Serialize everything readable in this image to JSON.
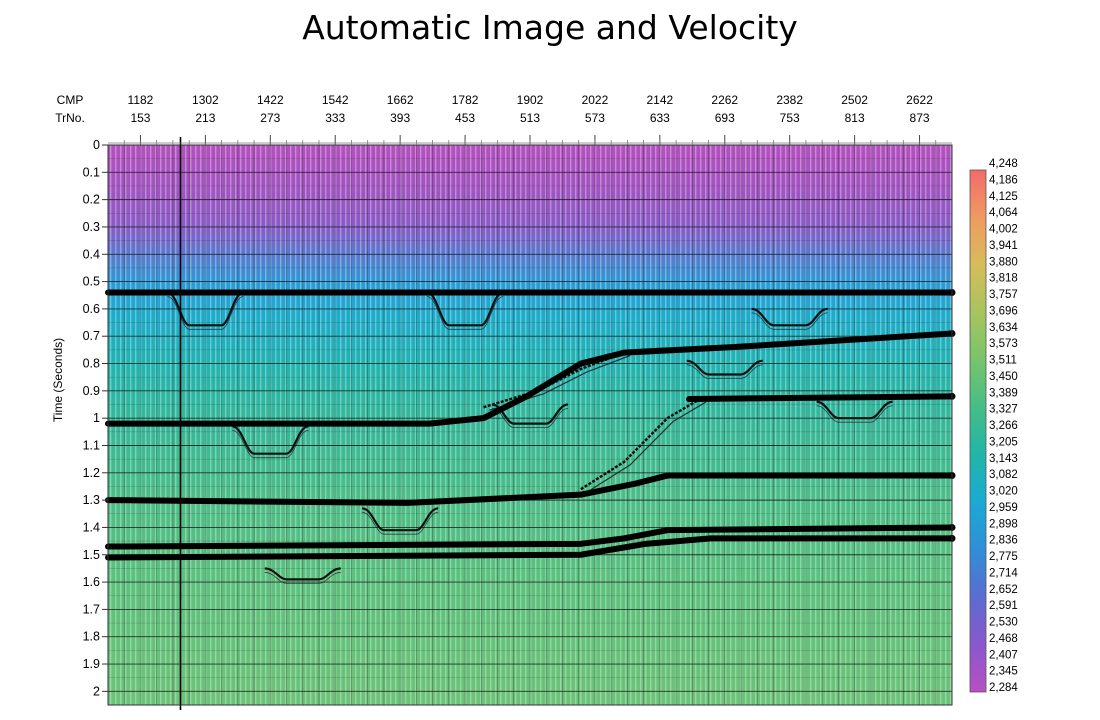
{
  "title": "Automatic Image and Velocity",
  "chart_data": {
    "type": "heatmap",
    "title": "Automatic Image and Velocity",
    "ylabel": "Time (Seconds)",
    "x_axis_rows": [
      {
        "label": "CMP",
        "values": [
          "1182",
          "1302",
          "1422",
          "1542",
          "1662",
          "1782",
          "1902",
          "2022",
          "2142",
          "2262",
          "2382",
          "2502",
          "2622"
        ]
      },
      {
        "label": "TrNo.",
        "values": [
          "153",
          "213",
          "273",
          "333",
          "393",
          "453",
          "513",
          "573",
          "633",
          "693",
          "753",
          "813",
          "873"
        ]
      }
    ],
    "y_ticks": [
      "0",
      "0.1",
      "0.2",
      "0.3",
      "0.4",
      "0.5",
      "0.6",
      "0.7",
      "0.8",
      "0.9",
      "1",
      "1.1",
      "1.2",
      "1.3",
      "1.4",
      "1.5",
      "1.6",
      "1.7",
      "1.8",
      "1.9",
      "2"
    ],
    "ylim": [
      0,
      2.05
    ],
    "y_inverted": true,
    "trace_range": [
      123,
      903
    ],
    "colorbar": {
      "labels": [
        "4,248",
        "4,186",
        "4,125",
        "4,064",
        "4,002",
        "3,941",
        "3,880",
        "3,818",
        "3,757",
        "3,696",
        "3,634",
        "3,573",
        "3,511",
        "3,450",
        "3,389",
        "3,327",
        "3,266",
        "3,205",
        "3,143",
        "3,082",
        "3,020",
        "2,959",
        "2,898",
        "2,836",
        "2,775",
        "2,714",
        "2,652",
        "2,591",
        "2,530",
        "2,468",
        "2,407",
        "2,345",
        "2,284"
      ],
      "range": [
        2284,
        4248
      ],
      "colors_low_to_high": [
        "#b84fc2",
        "#8a58cc",
        "#5a6cd2",
        "#2f8fd8",
        "#1aaad4",
        "#22b5a8",
        "#45bd86",
        "#78c46a",
        "#a8c45e",
        "#d7bc5a",
        "#f09a62",
        "#f26a6a"
      ]
    },
    "velocity_field": {
      "colors_top_to_bottom": [
        "#b54fbf",
        "#a553c2",
        "#8a5ac8",
        "#5a78d0",
        "#2e98d6",
        "#1fa9cf",
        "#22b3b2",
        "#35b79a",
        "#4dbd88",
        "#5dc07e",
        "#6cc278"
      ],
      "color_stops_time": [
        0,
        0.15,
        0.3,
        0.4,
        0.5,
        0.6,
        0.8,
        1.0,
        1.3,
        1.6,
        2.0
      ],
      "grid_color": "#1a1a1a"
    },
    "horizons": [
      {
        "points": [
          [
            123,
            0.54
          ],
          [
            903,
            0.54
          ]
        ]
      },
      {
        "points": [
          [
            123,
            1.02
          ],
          [
            420,
            1.02
          ],
          [
            470,
            1.0
          ],
          [
            510,
            0.92
          ],
          [
            560,
            0.8
          ],
          [
            600,
            0.76
          ],
          [
            700,
            0.74
          ],
          [
            903,
            0.69
          ]
        ]
      },
      {
        "points": [
          [
            123,
            1.3
          ],
          [
            400,
            1.31
          ],
          [
            560,
            1.28
          ],
          [
            610,
            1.24
          ],
          [
            640,
            1.21
          ],
          [
            903,
            1.21
          ]
        ]
      },
      {
        "points": [
          [
            660,
            0.93
          ],
          [
            903,
            0.92
          ]
        ]
      },
      {
        "points": [
          [
            123,
            1.47
          ],
          [
            560,
            1.46
          ],
          [
            600,
            1.44
          ],
          [
            640,
            1.41
          ],
          [
            903,
            1.4
          ]
        ]
      },
      {
        "points": [
          [
            123,
            1.51
          ],
          [
            560,
            1.5
          ],
          [
            620,
            1.46
          ],
          [
            680,
            1.44
          ],
          [
            903,
            1.44
          ]
        ]
      }
    ],
    "diving_wave_curves": [
      {
        "points": [
          [
            470,
            0.96
          ],
          [
            520,
            0.9
          ],
          [
            560,
            0.82
          ],
          [
            600,
            0.76
          ]
        ]
      },
      {
        "points": [
          [
            560,
            1.26
          ],
          [
            600,
            1.16
          ],
          [
            640,
            1.0
          ],
          [
            670,
            0.93
          ]
        ]
      }
    ],
    "anomaly_dips": [
      {
        "trace": 213,
        "top": 0.54,
        "depth": 0.66
      },
      {
        "trace": 453,
        "top": 0.54,
        "depth": 0.66
      },
      {
        "trace": 753,
        "top": 0.6,
        "depth": 0.66
      },
      {
        "trace": 693,
        "top": 0.79,
        "depth": 0.84
      },
      {
        "trace": 513,
        "top": 0.95,
        "depth": 1.02
      },
      {
        "trace": 813,
        "top": 0.94,
        "depth": 1.0
      },
      {
        "trace": 273,
        "top": 1.03,
        "depth": 1.13
      },
      {
        "trace": 393,
        "top": 1.33,
        "depth": 1.41
      },
      {
        "trace": 303,
        "top": 1.55,
        "depth": 1.59
      }
    ],
    "vertical_marker_trace": 190
  }
}
